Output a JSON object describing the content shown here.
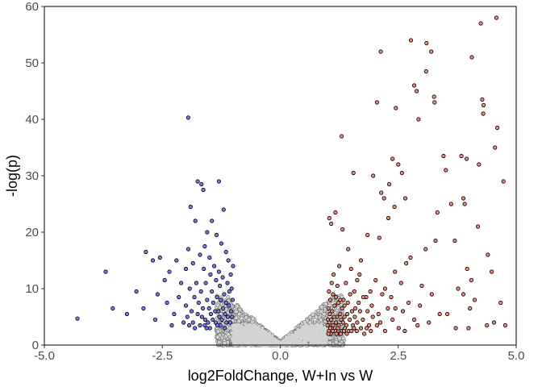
{
  "chart_data": {
    "type": "scatter",
    "title": "",
    "xlabel": "log2FoldChange, W+In vs W",
    "ylabel": "-log(p)",
    "xlim": [
      -5.0,
      5.0
    ],
    "ylim": [
      0,
      60
    ],
    "x_ticks": [
      "-5.0",
      "-2.5",
      "0.0",
      "2.5",
      "5.0"
    ],
    "x_tick_values": [
      -5.0,
      -2.5,
      0.0,
      2.5,
      5.0
    ],
    "y_ticks": [
      "0",
      "10",
      "20",
      "30",
      "40",
      "50",
      "60"
    ],
    "y_tick_values": [
      0,
      10,
      20,
      30,
      40,
      50,
      60
    ],
    "grid": false,
    "legend": "none",
    "colors": {
      "down": "#7b7bf0",
      "up": "#f08a7a",
      "not_significant": "#d3d3d3",
      "point_outline": "#000000"
    },
    "series": [
      {
        "group": "up",
        "x": [
          4.58,
          4.25,
          4.06,
          4.28,
          2.77,
          3.1,
          3.2,
          3.09,
          2.13,
          2.89,
          3.26,
          3.27,
          2.84,
          4.31,
          4.3,
          4.6,
          2.05,
          2.45,
          2.93,
          1.3,
          4.55,
          3.84,
          3.95,
          4.73,
          3.46,
          4.21,
          2.38,
          2.5,
          2.58,
          3.51,
          1.97,
          2.31,
          3.88,
          2.14,
          2.65,
          2.42,
          3.62,
          1.55,
          2.2,
          3.91,
          3.33,
          1.17,
          4.4,
          2.29,
          1.32,
          1.04,
          1.85,
          4.48,
          4.19,
          3.7,
          3.29,
          2.1,
          1.08,
          2.76,
          3.96,
          1.44,
          3.08,
          4.12,
          2.67,
          1.71,
          4.05,
          1.25,
          2.43,
          3.77,
          1.68,
          3.88,
          4.67,
          2.02,
          2.56,
          1.5,
          2.22,
          1.63,
          3.21,
          1.13,
          2.35,
          3.0,
          1.39,
          1.91,
          2.72,
          1.21,
          1.57,
          1.82,
          2.16,
          1.09,
          1.34,
          1.48,
          2.44,
          1.76,
          3.54,
          1.03,
          2.96,
          1.27,
          1.66,
          4.02,
          1.12,
          1.94,
          2.28,
          1.43,
          1.18,
          1.59,
          3.38,
          1.06,
          1.36,
          2.6,
          1.85,
          1.23,
          1.02,
          1.52,
          4.53,
          1.15,
          2.08,
          1.31,
          2.84,
          1.69,
          1.1,
          1.42,
          1.96,
          1.27,
          3.15,
          1.05,
          1.58,
          1.2,
          2.38,
          1.36,
          1.75,
          1.14,
          4.38,
          1.47,
          1.01,
          2.12,
          1.29,
          1.63,
          1.08,
          1.88,
          1.33,
          2.91,
          1.18,
          1.54,
          1.04,
          3.72,
          1.4,
          2.05,
          1.24,
          1.12,
          1.71,
          1.0,
          2.51,
          1.37,
          1.56,
          1.09,
          1.83,
          1.22,
          4.77,
          1.45,
          1.06,
          1.3,
          2.22,
          1.16,
          1.62,
          1.03,
          3.99,
          1.35,
          1.92,
          1.11,
          1.26,
          1.51,
          1.07,
          2.64,
          1.19,
          1.41,
          1.02,
          1.78,
          1.28
        ],
        "y": [
          58.0,
          57.0,
          51.0,
          43.5,
          54.0,
          53.5,
          52.0,
          48.5,
          52.0,
          45.0,
          44.0,
          43.0,
          46.0,
          42.5,
          41.0,
          38.5,
          43.0,
          42.0,
          40.0,
          37.0,
          35.0,
          33.5,
          33.0,
          29.0,
          33.5,
          32.0,
          33.0,
          32.0,
          30.5,
          31.0,
          30.0,
          28.5,
          26.0,
          27.0,
          26.0,
          24.5,
          25.0,
          30.5,
          26.0,
          25.0,
          23.5,
          23.5,
          16.0,
          22.5,
          20.5,
          22.5,
          19.5,
          13.0,
          21.0,
          18.5,
          18.5,
          19.0,
          21.5,
          15.5,
          13.5,
          17.0,
          17.0,
          8.0,
          14.5,
          15.0,
          11.5,
          14.0,
          13.0,
          10.0,
          12.5,
          9.0,
          7.5,
          11.5,
          11.0,
          13.5,
          10.0,
          11.5,
          9.0,
          12.5,
          8.5,
          10.5,
          11.0,
          9.5,
          7.5,
          10.5,
          9.5,
          8.5,
          9.0,
          11.0,
          8.0,
          9.0,
          6.5,
          8.5,
          5.5,
          9.5,
          7.0,
          8.0,
          7.5,
          6.5,
          9.0,
          7.0,
          6.5,
          7.5,
          8.5,
          6.5,
          5.5,
          8.0,
          7.0,
          6.0,
          6.0,
          7.5,
          6.5,
          6.0,
          4.0,
          7.0,
          5.5,
          6.5,
          4.5,
          6.0,
          6.0,
          5.5,
          5.0,
          5.5,
          4.0,
          5.5,
          5.0,
          5.0,
          4.5,
          5.0,
          4.5,
          5.0,
          3.5,
          4.5,
          4.5,
          4.0,
          4.5,
          4.0,
          4.5,
          3.5,
          4.0,
          3.5,
          4.0,
          3.5,
          4.0,
          3.0,
          3.5,
          3.5,
          3.5,
          3.5,
          3.0,
          3.5,
          3.0,
          3.0,
          3.0,
          3.0,
          3.0,
          3.0,
          3.5,
          2.5,
          3.0,
          2.5,
          2.5,
          2.5,
          2.5,
          2.5,
          3.0,
          2.5,
          2.5,
          2.5,
          2.0,
          2.5,
          2.0,
          2.5,
          2.0,
          2.0,
          2.0,
          2.0,
          2.0
        ]
      },
      {
        "group": "down",
        "x": [
          -1.95,
          -1.75,
          -1.67,
          -1.63,
          -1.3,
          -1.9,
          -1.8,
          -1.45,
          -1.55,
          -1.95,
          -2.85,
          -2.55,
          -1.6,
          -1.2,
          -1.35,
          -2.2,
          -1.25,
          -1.7,
          -2.0,
          -1.5,
          -1.15,
          -1.4,
          -3.7,
          -2.7,
          -1.85,
          -1.1,
          -2.35,
          -1.62,
          -1.3,
          -2.1,
          -1.48,
          -1.0,
          -1.78,
          -2.45,
          -1.22,
          -1.58,
          -3.05,
          -1.92,
          -1.36,
          -1.05,
          -2.6,
          -1.68,
          -1.28,
          -1.12,
          -2.15,
          -1.45,
          -1.82,
          -1.03,
          -1.55,
          -2.4,
          -1.19,
          -1.73,
          -1.34,
          -1.08,
          -2.0,
          -1.42,
          -1.26,
          -1.64,
          -4.3,
          -3.55,
          -3.25,
          -2.9,
          -1.88,
          -1.15,
          -1.51,
          -2.25,
          -1.01,
          -1.38,
          -1.75,
          -1.09,
          -1.97,
          -1.31,
          -1.66,
          -1.21,
          -2.65,
          -1.47,
          -1.04,
          -1.59,
          -1.17,
          -1.85,
          -1.29,
          -1.43,
          -2.05,
          -1.11,
          -1.53,
          -1.24,
          -1.7,
          -1.02,
          -1.37,
          -1.93,
          -1.14,
          -1.6,
          -1.27,
          -2.3,
          -1.06,
          -1.49,
          -1.33,
          -1.81,
          -1.18,
          -1.56
        ],
        "y": [
          40.3,
          29.0,
          28.5,
          27.5,
          29.0,
          24.5,
          22.0,
          22.0,
          20.0,
          17.0,
          16.5,
          15.5,
          17.5,
          24.0,
          19.5,
          15.0,
          18.0,
          16.0,
          13.5,
          15.5,
          16.5,
          14.0,
          13.0,
          15.0,
          14.5,
          15.0,
          13.0,
          13.5,
          13.0,
          11.0,
          12.5,
          14.0,
          11.0,
          11.5,
          12.0,
          11.0,
          9.5,
          10.0,
          11.5,
          12.5,
          9.0,
          9.5,
          10.5,
          11.0,
          8.5,
          9.5,
          8.5,
          10.0,
          8.0,
          7.5,
          9.0,
          7.5,
          8.5,
          9.5,
          7.0,
          7.5,
          8.0,
          6.5,
          4.7,
          6.5,
          5.5,
          6.5,
          6.0,
          7.5,
          6.5,
          5.5,
          8.0,
          6.0,
          5.5,
          7.0,
          5.0,
          6.0,
          5.0,
          6.5,
          4.5,
          5.5,
          6.0,
          4.5,
          5.5,
          4.0,
          5.0,
          4.5,
          4.0,
          5.0,
          4.0,
          4.5,
          3.5,
          5.0,
          4.0,
          3.5,
          4.0,
          3.5,
          3.5,
          3.5,
          4.0,
          3.0,
          3.5,
          3.0,
          3.0,
          3.0
        ]
      }
    ]
  }
}
